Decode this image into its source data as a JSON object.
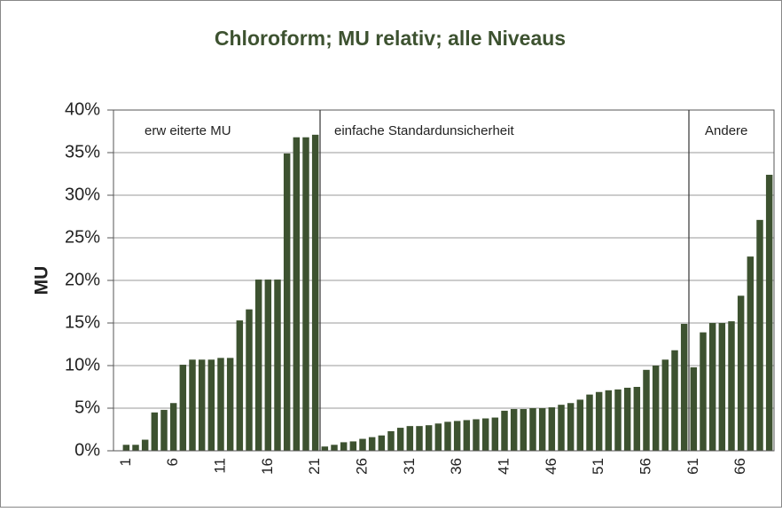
{
  "chart_data": {
    "type": "bar",
    "title": "Chloroform; MU relativ; alle Niveaus",
    "y_label": "MU",
    "color": "#3d5230",
    "grid": true,
    "annotations": [
      "erw eiterte MU",
      "einfache Standardunsicherheit",
      "Andere"
    ],
    "categories": [
      "1",
      null,
      null,
      null,
      null,
      "6",
      null,
      null,
      null,
      null,
      "11",
      null,
      null,
      null,
      null,
      "16",
      null,
      null,
      null,
      null,
      "21",
      null,
      null,
      null,
      null,
      "26",
      null,
      null,
      null,
      null,
      "31",
      null,
      null,
      null,
      null,
      "36",
      null,
      null,
      null,
      null,
      "41",
      null,
      null,
      null,
      null,
      "46",
      null,
      null,
      null,
      null,
      "51",
      null,
      null,
      null,
      null,
      "56",
      null,
      null,
      null,
      null,
      "61",
      null,
      null,
      null,
      null,
      "66",
      null,
      null,
      null
    ],
    "values": [
      0.7,
      0.7,
      1.3,
      4.5,
      4.8,
      5.6,
      10.1,
      10.7,
      10.7,
      10.7,
      10.9,
      10.9,
      15.3,
      16.6,
      20.1,
      20.1,
      20.1,
      34.9,
      36.8,
      36.8,
      37.1,
      0.5,
      0.7,
      1.0,
      1.1,
      1.4,
      1.6,
      1.8,
      2.3,
      2.7,
      2.9,
      2.9,
      3.0,
      3.2,
      3.4,
      3.5,
      3.6,
      3.7,
      3.8,
      3.9,
      4.7,
      4.9,
      4.9,
      5.0,
      5.0,
      5.1,
      5.4,
      5.6,
      6.0,
      6.6,
      6.9,
      7.1,
      7.2,
      7.4,
      7.5,
      9.5,
      10.0,
      10.7,
      11.8,
      14.9,
      9.8,
      13.9,
      15.0,
      15.0,
      15.2,
      18.2,
      22.8,
      27.1,
      32.4
    ],
    "ylim": [
      0,
      40
    ],
    "yticks": [
      {
        "value": 0,
        "label": "0%"
      },
      {
        "value": 5,
        "label": "5%"
      },
      {
        "value": 10,
        "label": "10%"
      },
      {
        "value": 15,
        "label": "15%"
      },
      {
        "value": 20,
        "label": "20%"
      },
      {
        "value": 25,
        "label": "25%"
      },
      {
        "value": 30,
        "label": "30%"
      },
      {
        "value": 35,
        "label": "35%"
      },
      {
        "value": 40,
        "label": "40%"
      }
    ]
  }
}
